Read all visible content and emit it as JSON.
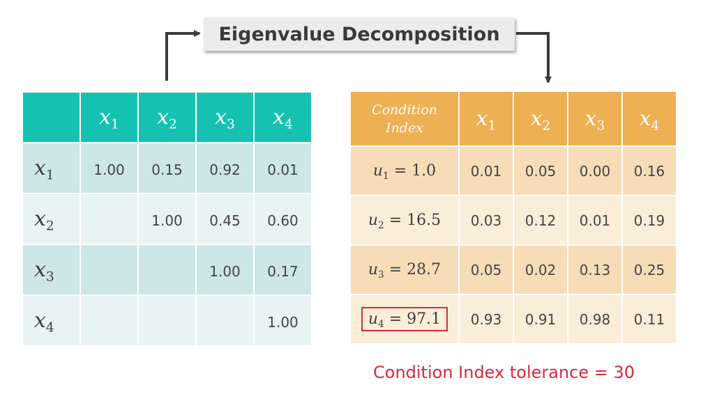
{
  "title": "Eigenvalue Decomposition",
  "corr_matrix": {
    "headers": [
      {
        "base": "x",
        "sub": "1"
      },
      {
        "base": "x",
        "sub": "2"
      },
      {
        "base": "x",
        "sub": "3"
      },
      {
        "base": "x",
        "sub": "4"
      }
    ],
    "rows": [
      {
        "base": "x",
        "sub": "1",
        "values": [
          "1.00",
          "0.15",
          "0.92",
          "0.01"
        ]
      },
      {
        "base": "x",
        "sub": "2",
        "values": [
          "",
          "1.00",
          "0.45",
          "0.60"
        ]
      },
      {
        "base": "x",
        "sub": "3",
        "values": [
          "",
          "",
          "1.00",
          "0.17"
        ]
      },
      {
        "base": "x",
        "sub": "4",
        "values": [
          "",
          "",
          "",
          "1.00"
        ]
      }
    ],
    "colors": {
      "header": "#15c2b1",
      "row_dark": "#cce7e5",
      "row_light": "#e7f4f3"
    }
  },
  "eigen_table": {
    "index_header_line1": "Condition",
    "index_header_line2": "Index",
    "headers": [
      {
        "base": "x",
        "sub": "1"
      },
      {
        "base": "x",
        "sub": "2"
      },
      {
        "base": "x",
        "sub": "3"
      },
      {
        "base": "x",
        "sub": "4"
      }
    ],
    "rows": [
      {
        "base": "u",
        "sub": "1",
        "rest": " = 1.0",
        "values": [
          "0.01",
          "0.05",
          "0.00",
          "0.16"
        ]
      },
      {
        "base": "u",
        "sub": "2",
        "rest": " = 16.5",
        "values": [
          "0.03",
          "0.12",
          "0.01",
          "0.19"
        ]
      },
      {
        "base": "u",
        "sub": "3",
        "rest": " = 28.7",
        "values": [
          "0.05",
          "0.02",
          "0.13",
          "0.25"
        ]
      },
      {
        "base": "u",
        "sub": "4",
        "rest": " = 97.1",
        "values": [
          "0.93",
          "0.91",
          "0.98",
          "0.11"
        ]
      }
    ],
    "colors": {
      "header": "#edb052",
      "row_dark": "#f6ddb8",
      "row_light": "#fbeed9",
      "highlight": "#d62a3c"
    }
  },
  "tolerance_note": "Condition Index tolerance = 30"
}
